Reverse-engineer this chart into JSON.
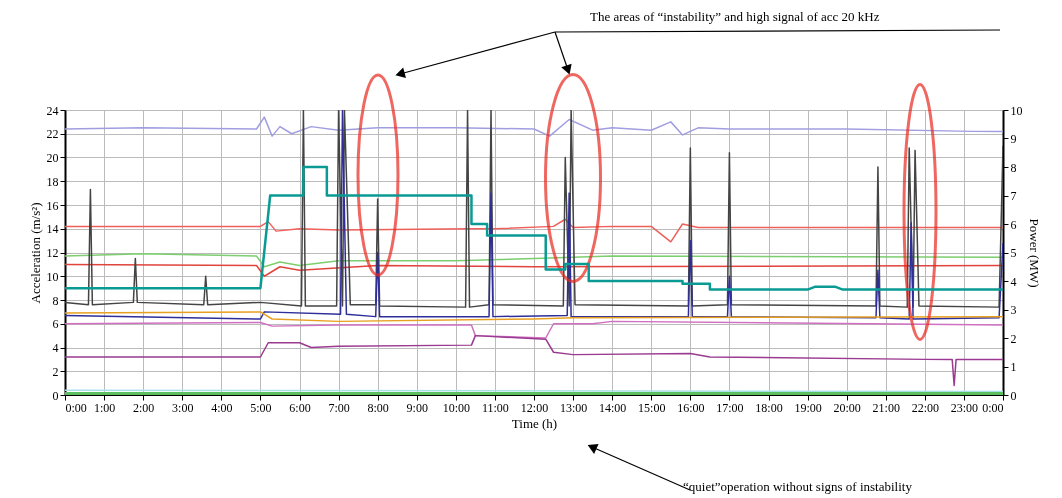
{
  "chart_data": {
    "type": "line",
    "xlabel": "Time (h)",
    "ylabel": "Acceleration (m/s²)",
    "y2label": "Power (MW)",
    "annotations": [
      "The areas of “instability” and high signal of acc 20 kHz",
      "“quiet”operation without signs of instability"
    ],
    "xlim": [
      0,
      24
    ],
    "ylim": [
      0,
      24
    ],
    "y2lim": [
      0,
      10
    ],
    "xticks": [
      {
        "value": 0,
        "label": "0:00"
      },
      {
        "value": 1,
        "label": "1:00"
      },
      {
        "value": 2,
        "label": "2:00"
      },
      {
        "value": 3,
        "label": "3:00"
      },
      {
        "value": 4,
        "label": "4:00"
      },
      {
        "value": 5,
        "label": "5:00"
      },
      {
        "value": 6,
        "label": "6:00"
      },
      {
        "value": 7,
        "label": "7:00"
      },
      {
        "value": 8,
        "label": "8:00"
      },
      {
        "value": 9,
        "label": "9:00"
      },
      {
        "value": 10,
        "label": "10:00"
      },
      {
        "value": 11,
        "label": "11:00"
      },
      {
        "value": 12,
        "label": "12:00"
      },
      {
        "value": 13,
        "label": "13:00"
      },
      {
        "value": 14,
        "label": "14:00"
      },
      {
        "value": 15,
        "label": "15:00"
      },
      {
        "value": 16,
        "label": "16:00"
      },
      {
        "value": 17,
        "label": "17:00"
      },
      {
        "value": 18,
        "label": "18:00"
      },
      {
        "value": 19,
        "label": "19:00"
      },
      {
        "value": 20,
        "label": "20:00"
      },
      {
        "value": 21,
        "label": "21:00"
      },
      {
        "value": 22,
        "label": "22:00"
      },
      {
        "value": 23,
        "label": "23:00"
      },
      {
        "value": 24,
        "label": "0:00"
      }
    ],
    "yticks": [
      0,
      2,
      4,
      6,
      8,
      10,
      12,
      14,
      16,
      18,
      20,
      22,
      24
    ],
    "y2ticks": [
      0,
      1,
      2,
      3,
      4,
      5,
      6,
      7,
      8,
      9,
      10
    ],
    "grid": true,
    "marker": "none",
    "line_style": "solid",
    "series": [
      {
        "color": "#a09ee0",
        "x": [
          0,
          2,
          4.9,
          5.1,
          5.3,
          5.5,
          5.8,
          6.3,
          7,
          8,
          10,
          12,
          12.4,
          12.9,
          13.5,
          14,
          15,
          15.5,
          15.8,
          16.2,
          17,
          20,
          23.2,
          24
        ],
        "values": [
          22.4,
          22.5,
          22.4,
          23.4,
          21.8,
          22.6,
          22.0,
          22.6,
          22.3,
          22.5,
          22.5,
          22.4,
          21.8,
          23.2,
          22.3,
          22.5,
          22.3,
          23.0,
          21.9,
          22.5,
          22.4,
          22.4,
          22.2,
          22.2
        ]
      },
      {
        "color": "#f0605a",
        "x": [
          0,
          5,
          5.2,
          5.4,
          6,
          7,
          10.4,
          11,
          12.5,
          12.8,
          13,
          14,
          15,
          15.5,
          15.8,
          16.2,
          24
        ],
        "values": [
          14.2,
          14.2,
          14.6,
          13.8,
          14.0,
          13.9,
          14.0,
          14.0,
          14.2,
          14.8,
          14.1,
          14.2,
          14.2,
          12.9,
          14.4,
          14.1,
          14.1
        ]
      },
      {
        "color": "#7dce70",
        "x": [
          0,
          2,
          4.9,
          5.1,
          5.5,
          6,
          7,
          10,
          12,
          14,
          24
        ],
        "values": [
          11.7,
          11.9,
          11.7,
          10.8,
          11.2,
          10.9,
          11.3,
          11.3,
          11.5,
          11.7,
          11.6
        ]
      },
      {
        "color": "#e0443c",
        "x": [
          0,
          4.9,
          5.1,
          5.5,
          6,
          8,
          12,
          24
        ],
        "values": [
          11.0,
          10.9,
          10.0,
          10.8,
          10.5,
          10.9,
          10.8,
          10.9
        ]
      },
      {
        "color": "#0a9a94",
        "axis": "y2",
        "x": [
          0,
          5.0,
          5.25,
          6.1,
          6.1,
          6.7,
          6.7,
          10.4,
          10.4,
          10.8,
          10.8,
          12.3,
          12.3,
          12.8,
          12.8,
          13.4,
          13.4,
          15.8,
          15.8,
          16.5,
          16.5,
          19.0,
          19.2,
          19.7,
          19.9,
          24
        ],
        "values": [
          3.75,
          3.75,
          7.0,
          7.0,
          8.0,
          8.0,
          7.0,
          7.0,
          6.0,
          6.0,
          5.6,
          5.6,
          4.4,
          4.4,
          4.6,
          4.6,
          4.0,
          4.0,
          3.9,
          3.9,
          3.7,
          3.7,
          3.8,
          3.8,
          3.7,
          3.7
        ]
      },
      {
        "color": "#444444",
        "x": [
          0,
          0.6,
          0.65,
          0.7,
          1.75,
          1.8,
          1.85,
          3.55,
          3.6,
          3.65,
          5,
          6.05,
          6.1,
          6.15,
          6.95,
          7.0,
          7.1,
          7.15,
          7.3,
          7.95,
          8.0,
          8.05,
          10.25,
          10.3,
          10.35,
          10.85,
          10.9,
          10.95,
          12.75,
          12.8,
          12.9,
          12.95,
          13.05,
          15.95,
          16.0,
          16.05,
          16.95,
          17.0,
          17.05,
          20.75,
          20.8,
          20.85,
          21.55,
          21.6,
          21.7,
          21.75,
          21.85,
          23.9,
          24
        ],
        "values": [
          7.8,
          7.6,
          17.3,
          7.6,
          7.8,
          11.5,
          7.8,
          7.6,
          10.0,
          7.6,
          7.8,
          7.5,
          24,
          7.5,
          7.5,
          24,
          7.5,
          24,
          7.6,
          7.6,
          16.5,
          7.5,
          7.4,
          24,
          7.4,
          7.6,
          24,
          7.6,
          7.5,
          20,
          7.5,
          24,
          7.6,
          7.5,
          20.8,
          7.5,
          7.6,
          20.4,
          7.6,
          7.5,
          19.2,
          7.5,
          7.4,
          20.8,
          7.4,
          20.6,
          7.5,
          7.4,
          21
        ]
      },
      {
        "color": "#2e2e9a",
        "x": [
          0,
          5,
          5.1,
          7.05,
          7.1,
          7.2,
          7.95,
          8.0,
          8.05,
          10.85,
          10.9,
          10.95,
          12.85,
          12.9,
          12.95,
          15.95,
          16.0,
          16.05,
          16.95,
          17.0,
          17.05,
          20.75,
          20.8,
          20.85,
          21.6,
          21.65,
          21.7,
          23.9,
          24
        ],
        "values": [
          6.7,
          6.4,
          7.0,
          6.8,
          24,
          6.8,
          6.6,
          12,
          6.6,
          6.6,
          17,
          6.6,
          6.7,
          17,
          6.6,
          6.6,
          13,
          6.6,
          6.6,
          10,
          6.6,
          6.5,
          10.5,
          6.5,
          6.4,
          14.5,
          6.4,
          6.5,
          12.8
        ]
      },
      {
        "color": "#e8a020",
        "x": [
          0,
          5,
          5.3,
          7,
          12,
          13,
          24
        ],
        "values": [
          6.9,
          7.0,
          6.4,
          6.2,
          6.4,
          6.5,
          6.6
        ]
      },
      {
        "color": "#d070c0",
        "x": [
          0,
          5,
          5.3,
          7,
          10.4,
          10.5,
          12.3,
          12.5,
          13.5,
          14,
          24
        ],
        "values": [
          6.0,
          6.1,
          5.8,
          5.9,
          5.9,
          5.0,
          4.8,
          6.0,
          6.0,
          6.2,
          5.9
        ]
      },
      {
        "color": "#9a3a90",
        "x": [
          0,
          5,
          5.2,
          6,
          6.3,
          7,
          10.4,
          10.5,
          12.3,
          12.5,
          13,
          16,
          16.5,
          22,
          22.7,
          22.75,
          22.8,
          24
        ],
        "values": [
          3.2,
          3.2,
          4.4,
          4.4,
          4.0,
          4.1,
          4.2,
          5.0,
          4.7,
          3.6,
          3.4,
          3.5,
          3.2,
          3.0,
          3.0,
          0.8,
          3.0,
          3.0
        ]
      },
      {
        "color": "#a8e0e8",
        "x": [
          0,
          24
        ],
        "values": [
          0.4,
          0.3
        ]
      },
      {
        "color": "#5cc060",
        "x": [
          0,
          24
        ],
        "values": [
          0,
          0
        ]
      }
    ]
  }
}
